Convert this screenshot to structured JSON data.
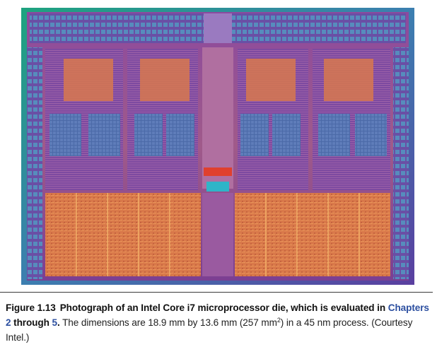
{
  "figure": {
    "image_alt": "Intel Core i7 microprocessor die photograph",
    "caption": {
      "label": "Figure 1.13",
      "title_part": "Photograph of an Intel Core i7 microprocessor die, which is evaluated in",
      "chapter_link_1": "Chapters 2",
      "through_text": "through",
      "chapter_link_2": "5",
      "period": ".",
      "body_before_sup": " The dimensions are 18.9 mm by 13.6 mm (257 mm",
      "sup": "2",
      "body_after_sup": ") in a 45 nm process. (Courtesy Intel.)"
    }
  },
  "colors": {
    "die_frame": "#1c8a6e",
    "die_base": "#7a3f8e",
    "cache_orange": "#d87548",
    "link_blue": "#2c4fa0"
  }
}
